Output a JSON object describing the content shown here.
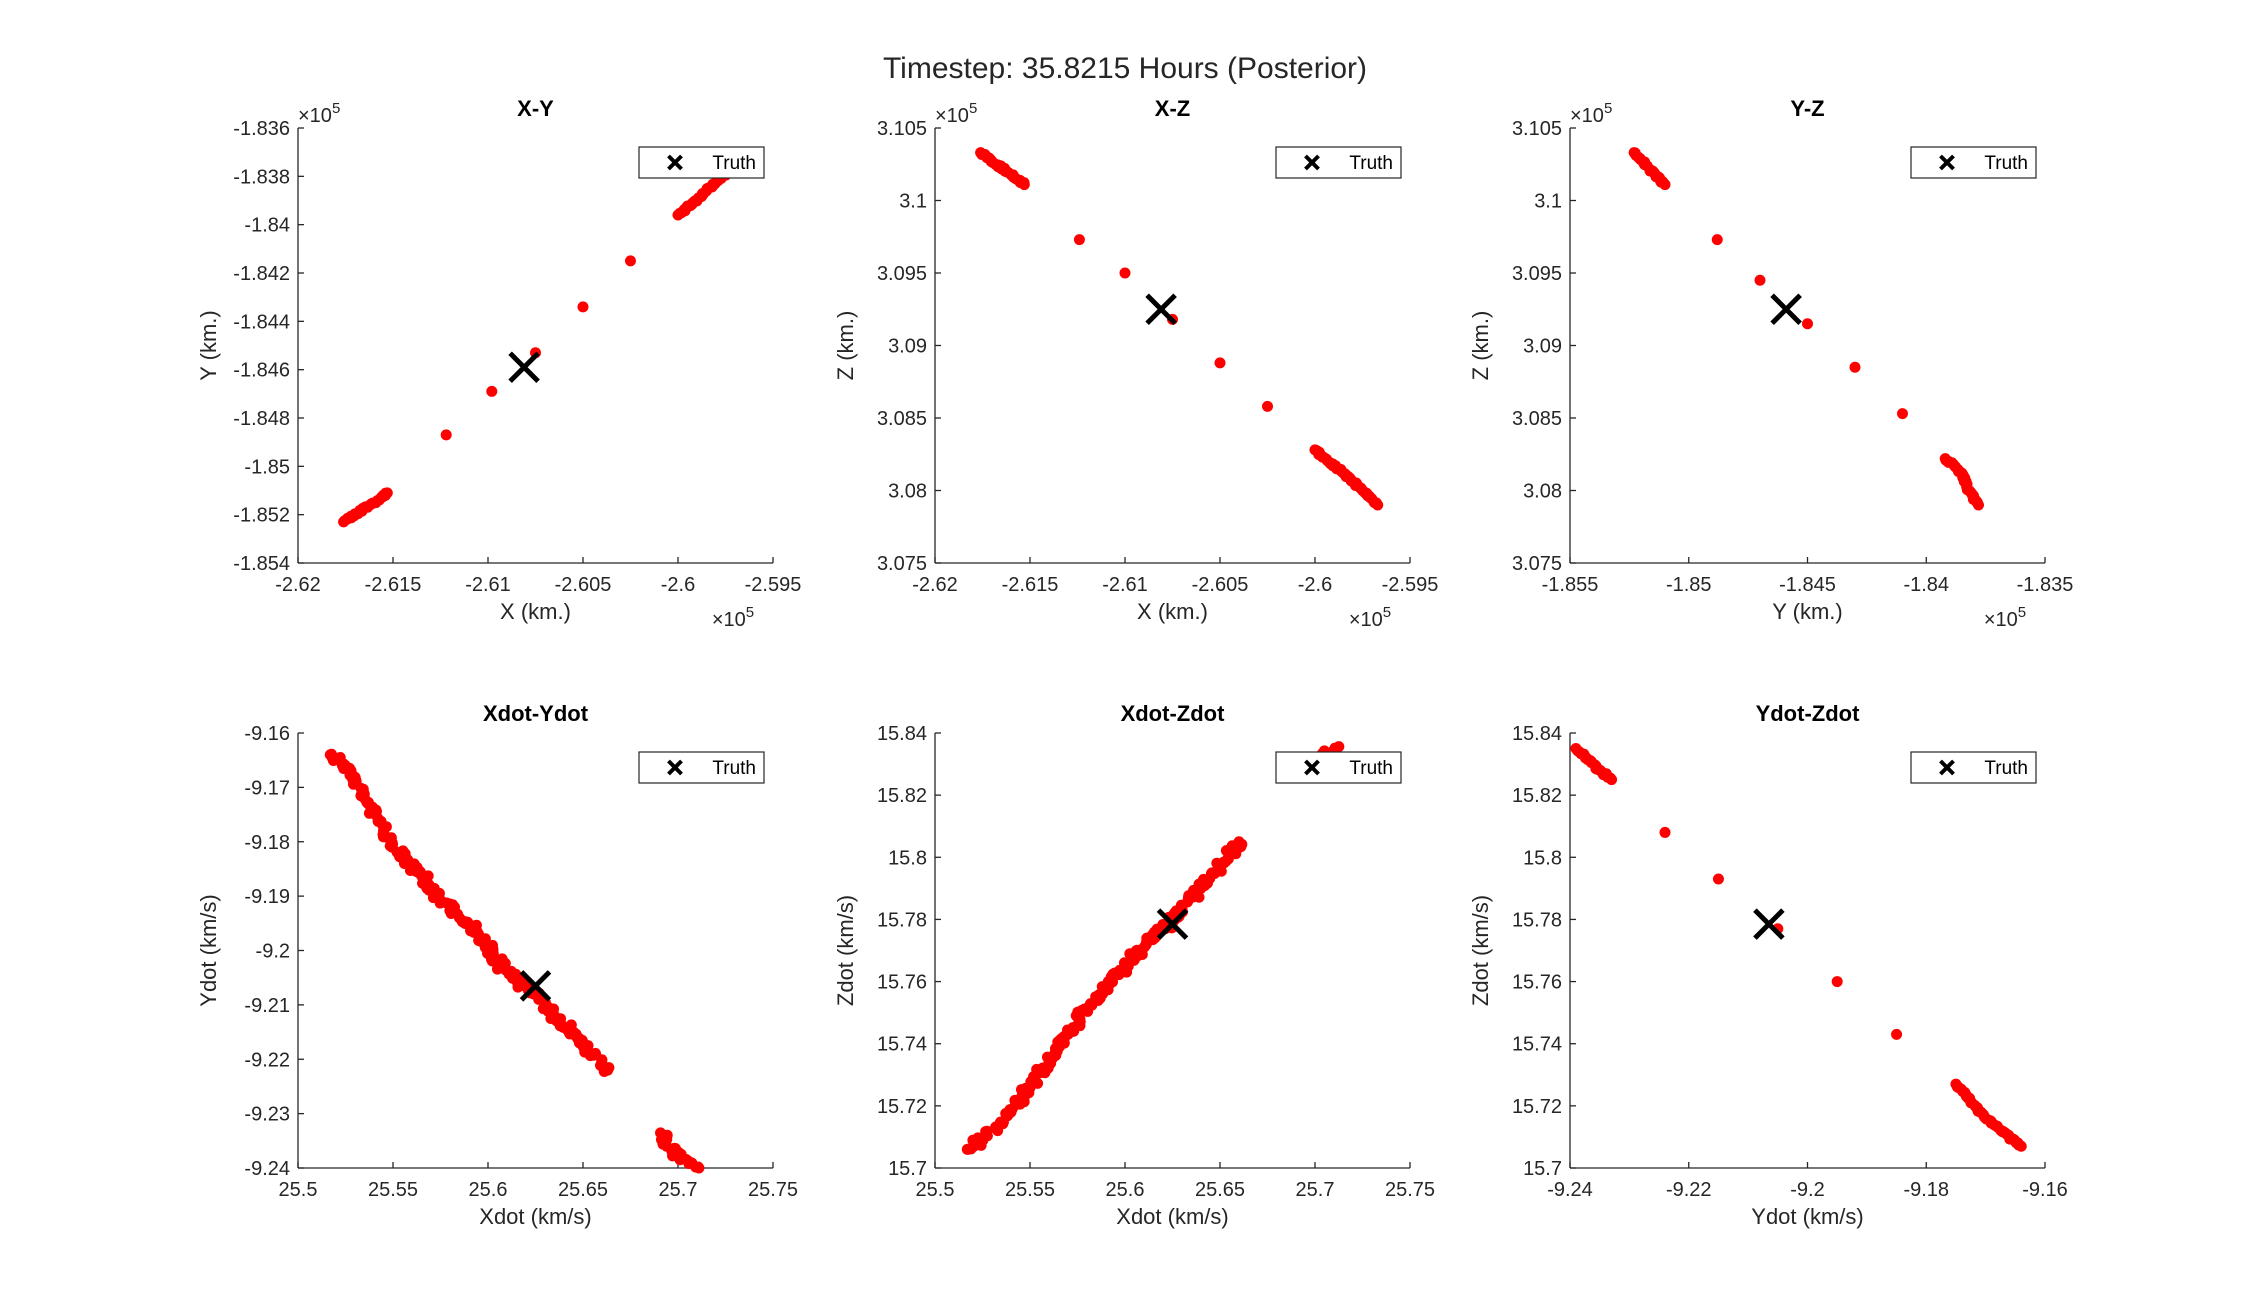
{
  "figure_title": "Timestep: 35.8215 Hours (Posterior)",
  "colors": {
    "cloud": "#ff0000",
    "truth": "#000000",
    "axis": "#262626"
  },
  "legend_label": "Truth",
  "chart_data": [
    {
      "type": "scatter",
      "title": "X-Y",
      "xlabel": "X (km.)",
      "ylabel": "Y (km.)",
      "xlim": [
        -2.62,
        -2.595
      ],
      "ylim": [
        -1.854,
        -1.836
      ],
      "xticks": [
        "-2.62",
        "-2.615",
        "-2.61",
        "-2.605",
        "-2.6",
        "-2.595"
      ],
      "yticks": [
        "-1.854",
        "-1.852",
        "-1.85",
        "-1.848",
        "-1.846",
        "-1.844",
        "-1.842",
        "-1.84",
        "-1.838",
        "-1.836"
      ],
      "x_exponent": "5",
      "y_exponent": "5",
      "legend": "top-right",
      "series": [
        {
          "values": [
            {
              "x": -2.6176,
              "y": -1.8523
            },
            {
              "x": -2.6154,
              "y": -1.8512
            },
            {
              "x": -2.6153,
              "y": -1.8511
            },
            {
              "x": -2.6122,
              "y": -1.8487
            },
            {
              "x": -2.6098,
              "y": -1.8469
            },
            {
              "x": -2.6075,
              "y": -1.8453
            },
            {
              "x": -2.605,
              "y": -1.8434
            },
            {
              "x": -2.6025,
              "y": -1.8415
            },
            {
              "x": -2.6,
              "y": -1.8396
            },
            {
              "x": -2.5985,
              "y": -1.8386
            },
            {
              "x": -2.5973,
              "y": -1.8378
            },
            {
              "x": -2.5965,
              "y": -1.8373
            }
          ]
        },
        {
          "name": "Truth",
          "values": [
            {
              "x": -2.6081,
              "y": -1.8459
            }
          ]
        }
      ]
    },
    {
      "type": "scatter",
      "title": "X-Z",
      "xlabel": "X (km.)",
      "ylabel": "Z (km.)",
      "xlim": [
        -2.62,
        -2.595
      ],
      "ylim": [
        3.075,
        3.105
      ],
      "xticks": [
        "-2.62",
        "-2.615",
        "-2.61",
        "-2.605",
        "-2.6",
        "-2.595"
      ],
      "yticks": [
        "3.075",
        "3.08",
        "3.085",
        "3.09",
        "3.095",
        "3.1",
        "3.105"
      ],
      "x_exponent": "5",
      "y_exponent": "5",
      "legend": "top-right",
      "series": [
        {
          "values": [
            {
              "x": -2.6176,
              "y": 3.1033
            },
            {
              "x": -2.6156,
              "y": 3.1014
            },
            {
              "x": -2.6153,
              "y": 3.1011
            },
            {
              "x": -2.6124,
              "y": 3.0973
            },
            {
              "x": -2.61,
              "y": 3.095
            },
            {
              "x": -2.6075,
              "y": 3.0918
            },
            {
              "x": -2.605,
              "y": 3.0888
            },
            {
              "x": -2.6025,
              "y": 3.0858
            },
            {
              "x": -2.6,
              "y": 3.0828
            },
            {
              "x": -2.5985,
              "y": 3.0812
            },
            {
              "x": -2.5975,
              "y": 3.08
            },
            {
              "x": -2.5967,
              "y": 3.079
            }
          ]
        },
        {
          "name": "Truth",
          "values": [
            {
              "x": -2.6081,
              "y": 3.0925
            }
          ]
        }
      ]
    },
    {
      "type": "scatter",
      "title": "Y-Z",
      "xlabel": "Y (km.)",
      "ylabel": "Z (km.)",
      "xlim": [
        -1.855,
        -1.835
      ],
      "ylim": [
        3.075,
        3.105
      ],
      "xticks": [
        "-1.855",
        "-1.85",
        "-1.845",
        "-1.84",
        "-1.835"
      ],
      "yticks": [
        "3.075",
        "3.08",
        "3.085",
        "3.09",
        "3.095",
        "3.1",
        "3.105"
      ],
      "x_exponent": "5",
      "y_exponent": "5",
      "legend": "top-right",
      "series": [
        {
          "values": [
            {
              "x": -1.8523,
              "y": 3.1033
            },
            {
              "x": -1.8512,
              "y": 3.1014
            },
            {
              "x": -1.851,
              "y": 3.1011
            },
            {
              "x": -1.8488,
              "y": 3.0973
            },
            {
              "x": -1.847,
              "y": 3.0945
            },
            {
              "x": -1.845,
              "y": 3.0915
            },
            {
              "x": -1.843,
              "y": 3.0885
            },
            {
              "x": -1.841,
              "y": 3.0853
            },
            {
              "x": -1.8392,
              "y": 3.0822
            },
            {
              "x": -1.8385,
              "y": 3.0812
            },
            {
              "x": -1.8382,
              "y": 3.08
            },
            {
              "x": -1.8378,
              "y": 3.079
            }
          ]
        },
        {
          "name": "Truth",
          "values": [
            {
              "x": -1.8459,
              "y": 3.0925
            }
          ]
        }
      ]
    },
    {
      "type": "scatter",
      "title": "Xdot-Ydot",
      "xlabel": "Xdot (km/s)",
      "ylabel": "Ydot (km/s)",
      "xlim": [
        25.5,
        25.75
      ],
      "ylim": [
        -9.24,
        -9.16
      ],
      "xticks": [
        "25.5",
        "25.55",
        "25.6",
        "25.65",
        "25.7",
        "25.75"
      ],
      "yticks": [
        "-9.24",
        "-9.23",
        "-9.22",
        "-9.21",
        "-9.2",
        "-9.19",
        "-9.18",
        "-9.17",
        "-9.16"
      ],
      "legend": "top-right",
      "series": [
        {
          "values": [
            {
              "x": 25.517,
              "y": -9.164
            },
            {
              "x": 25.525,
              "y": -9.166
            },
            {
              "x": 25.535,
              "y": -9.172
            },
            {
              "x": 25.545,
              "y": -9.178
            },
            {
              "x": 25.555,
              "y": -9.183
            },
            {
              "x": 25.565,
              "y": -9.186
            },
            {
              "x": 25.575,
              "y": -9.191
            },
            {
              "x": 25.585,
              "y": -9.194
            },
            {
              "x": 25.595,
              "y": -9.197
            },
            {
              "x": 25.605,
              "y": -9.202
            },
            {
              "x": 25.615,
              "y": -9.205
            },
            {
              "x": 25.625,
              "y": -9.208
            },
            {
              "x": 25.635,
              "y": -9.212
            },
            {
              "x": 25.645,
              "y": -9.215
            },
            {
              "x": 25.655,
              "y": -9.219
            },
            {
              "x": 25.663,
              "y": -9.222
            },
            {
              "x": 25.692,
              "y": -9.234
            },
            {
              "x": 25.694,
              "y": -9.236
            },
            {
              "x": 25.711,
              "y": -9.24
            }
          ]
        },
        {
          "name": "Truth",
          "values": [
            {
              "x": 25.625,
              "y": -9.2065
            }
          ]
        }
      ]
    },
    {
      "type": "scatter",
      "title": "Xdot-Zdot",
      "xlabel": "Xdot (km/s)",
      "ylabel": "Zdot (km/s)",
      "xlim": [
        25.5,
        25.75
      ],
      "ylim": [
        15.7,
        15.84
      ],
      "xticks": [
        "25.5",
        "25.55",
        "25.6",
        "25.65",
        "25.7",
        "25.75"
      ],
      "yticks": [
        "15.7",
        "15.72",
        "15.74",
        "15.76",
        "15.78",
        "15.8",
        "15.82",
        "15.84"
      ],
      "legend": "top-right",
      "series": [
        {
          "values": [
            {
              "x": 25.517,
              "y": 15.706
            },
            {
              "x": 25.525,
              "y": 15.709
            },
            {
              "x": 25.54,
              "y": 15.718
            },
            {
              "x": 25.55,
              "y": 15.726
            },
            {
              "x": 25.56,
              "y": 15.734
            },
            {
              "x": 25.57,
              "y": 15.743
            },
            {
              "x": 25.58,
              "y": 15.751
            },
            {
              "x": 25.59,
              "y": 15.758
            },
            {
              "x": 25.6,
              "y": 15.765
            },
            {
              "x": 25.61,
              "y": 15.771
            },
            {
              "x": 25.62,
              "y": 15.777
            },
            {
              "x": 25.63,
              "y": 15.783
            },
            {
              "x": 25.64,
              "y": 15.79
            },
            {
              "x": 25.65,
              "y": 15.797
            },
            {
              "x": 25.66,
              "y": 15.805
            },
            {
              "x": 25.693,
              "y": 15.826
            },
            {
              "x": 25.711,
              "y": 15.835
            }
          ]
        },
        {
          "name": "Truth",
          "values": [
            {
              "x": 25.625,
              "y": 15.7785
            }
          ]
        }
      ]
    },
    {
      "type": "scatter",
      "title": "Ydot-Zdot",
      "xlabel": "Ydot (km/s)",
      "ylabel": "Zdot (km/s)",
      "xlim": [
        -9.24,
        -9.16
      ],
      "ylim": [
        15.7,
        15.84
      ],
      "xticks": [
        "-9.24",
        "-9.22",
        "-9.2",
        "-9.18",
        "-9.16"
      ],
      "yticks": [
        "15.7",
        "15.72",
        "15.74",
        "15.76",
        "15.78",
        "15.8",
        "15.82",
        "15.84"
      ],
      "legend": "top-right",
      "series": [
        {
          "values": [
            {
              "x": -9.239,
              "y": 15.835
            },
            {
              "x": -9.235,
              "y": 15.828
            },
            {
              "x": -9.233,
              "y": 15.825
            },
            {
              "x": -9.224,
              "y": 15.808
            },
            {
              "x": -9.215,
              "y": 15.793
            },
            {
              "x": -9.205,
              "y": 15.777
            },
            {
              "x": -9.195,
              "y": 15.76
            },
            {
              "x": -9.185,
              "y": 15.743
            },
            {
              "x": -9.175,
              "y": 15.727
            },
            {
              "x": -9.17,
              "y": 15.716
            },
            {
              "x": -9.166,
              "y": 15.71
            },
            {
              "x": -9.164,
              "y": 15.707
            }
          ]
        },
        {
          "name": "Truth",
          "values": [
            {
              "x": -9.2065,
              "y": 15.7785
            }
          ]
        }
      ]
    }
  ]
}
